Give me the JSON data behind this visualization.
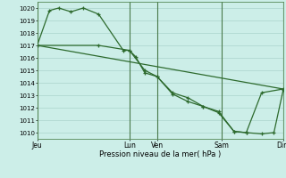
{
  "xlabel": "Pression niveau de la mer( hPa )",
  "background_color": "#cceee8",
  "grid_color": "#aad4cc",
  "line_color": "#2d6a2d",
  "vline_color": "#4a7a4a",
  "ylim": [
    1009.5,
    1020.5
  ],
  "ytick_min": 1010,
  "ytick_max": 1020,
  "tick_labels_x": [
    "Jeu",
    "Lun",
    "Ven",
    "Sam",
    "Dim"
  ],
  "tick_positions_x": [
    0,
    3.0,
    3.9,
    6.0,
    8.0
  ],
  "series1_x": [
    0.0,
    0.4,
    0.7,
    1.1,
    1.5,
    2.0,
    2.8,
    3.0,
    3.2,
    3.5,
    3.9,
    4.4,
    4.9,
    5.4,
    5.9,
    6.4,
    6.8,
    7.3,
    8.0
  ],
  "series1_y": [
    1017.0,
    1019.8,
    1020.0,
    1019.7,
    1020.0,
    1019.5,
    1016.6,
    1016.6,
    1016.1,
    1014.8,
    1014.5,
    1013.2,
    1012.8,
    1012.1,
    1011.7,
    1010.1,
    1010.0,
    1013.2,
    1013.5
  ],
  "series2_x": [
    0.0,
    2.0,
    3.0,
    3.5,
    3.9,
    4.4,
    4.9,
    5.4,
    5.9,
    6.4,
    6.8,
    7.3,
    7.7,
    8.0
  ],
  "series2_y": [
    1017.0,
    1017.0,
    1016.6,
    1015.0,
    1014.5,
    1013.1,
    1012.5,
    1012.1,
    1011.6,
    1010.1,
    1010.0,
    1009.9,
    1010.0,
    1013.4
  ],
  "series3_x": [
    0.0,
    8.0
  ],
  "series3_y": [
    1017.0,
    1013.5
  ],
  "marker_size": 3.5,
  "linewidth": 0.9,
  "xmin": 0,
  "xmax": 8.0
}
